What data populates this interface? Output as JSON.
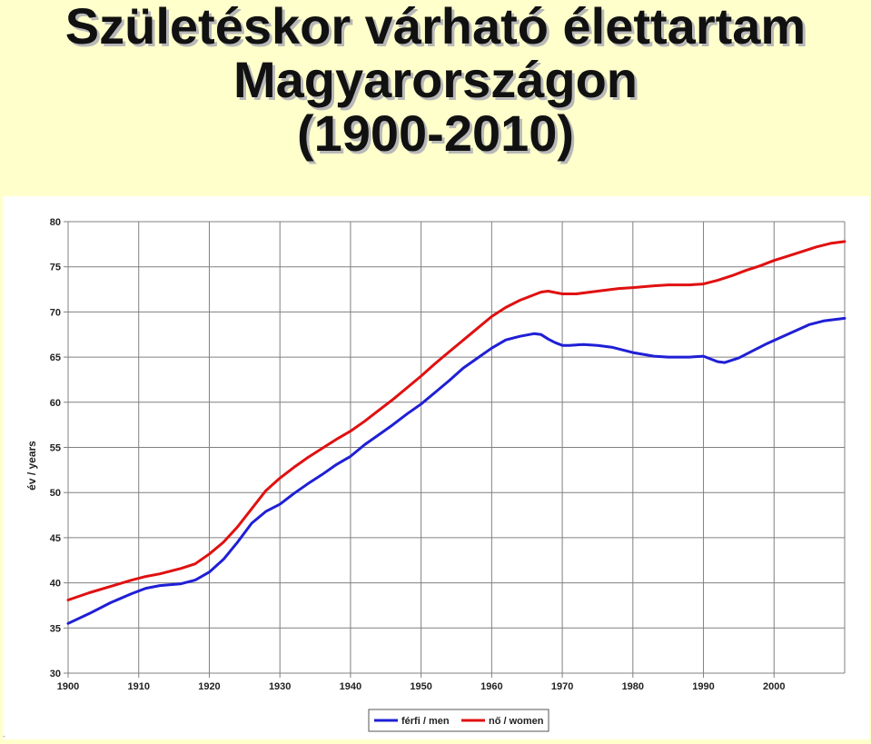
{
  "slide": {
    "title_lines": [
      "Születéskor várható élettartam",
      "Magyarországon",
      "(1900-2010)"
    ],
    "corner_mark": "-"
  },
  "colors": {
    "background": "#ffffcc",
    "men": "#1f1fd6",
    "women": "#e01010",
    "grid": "#808080"
  },
  "chart_data": {
    "type": "line",
    "title": "",
    "xlabel": "",
    "ylabel": "év / years",
    "xlim": [
      1900,
      2010
    ],
    "ylim": [
      30,
      80
    ],
    "x_ticks": [
      1900,
      1910,
      1920,
      1930,
      1940,
      1950,
      1960,
      1970,
      1980,
      1990,
      2000
    ],
    "y_ticks": [
      30,
      35,
      40,
      45,
      50,
      55,
      60,
      65,
      70,
      75,
      80
    ],
    "grid": true,
    "legend_position": "bottom-center",
    "series": [
      {
        "name": "férfi / men",
        "color": "#1f1fd6",
        "x": [
          1900,
          1903,
          1906,
          1909,
          1911,
          1913,
          1916,
          1918,
          1920,
          1922,
          1924,
          1926,
          1928,
          1930,
          1932,
          1934,
          1936,
          1938,
          1940,
          1942,
          1944,
          1946,
          1948,
          1950,
          1952,
          1954,
          1956,
          1958,
          1960,
          1962,
          1964,
          1966,
          1967,
          1968,
          1969,
          1970,
          1971,
          1973,
          1975,
          1977,
          1980,
          1983,
          1985,
          1988,
          1990,
          1992,
          1993,
          1995,
          1997,
          1999,
          2001,
          2003,
          2005,
          2007,
          2010
        ],
        "y": [
          35.5,
          36.6,
          37.8,
          38.8,
          39.4,
          39.7,
          39.9,
          40.3,
          41.2,
          42.6,
          44.5,
          46.6,
          47.9,
          48.7,
          49.9,
          51.0,
          52.0,
          53.1,
          54.0,
          55.3,
          56.4,
          57.5,
          58.7,
          59.8,
          61.1,
          62.4,
          63.8,
          64.9,
          66.0,
          66.9,
          67.3,
          67.6,
          67.5,
          67.0,
          66.6,
          66.3,
          66.3,
          66.4,
          66.3,
          66.1,
          65.5,
          65.1,
          65.0,
          65.0,
          65.1,
          64.5,
          64.4,
          64.9,
          65.7,
          66.5,
          67.2,
          67.9,
          68.6,
          69.0,
          69.3
        ]
      },
      {
        "name": "nő / women",
        "color": "#e01010",
        "x": [
          1900,
          1903,
          1906,
          1909,
          1911,
          1913,
          1916,
          1918,
          1920,
          1922,
          1924,
          1926,
          1928,
          1930,
          1932,
          1934,
          1936,
          1938,
          1940,
          1942,
          1944,
          1946,
          1948,
          1950,
          1952,
          1954,
          1956,
          1958,
          1960,
          1962,
          1964,
          1966,
          1967,
          1968,
          1970,
          1972,
          1975,
          1978,
          1980,
          1983,
          1985,
          1988,
          1990,
          1992,
          1994,
          1996,
          1998,
          2000,
          2002,
          2004,
          2006,
          2008,
          2010
        ],
        "y": [
          38.1,
          38.9,
          39.6,
          40.3,
          40.7,
          41.0,
          41.6,
          42.1,
          43.2,
          44.5,
          46.2,
          48.2,
          50.2,
          51.6,
          52.8,
          53.9,
          54.9,
          55.9,
          56.8,
          57.9,
          59.1,
          60.3,
          61.6,
          62.9,
          64.3,
          65.6,
          66.9,
          68.2,
          69.5,
          70.5,
          71.3,
          71.9,
          72.2,
          72.3,
          72.0,
          72.0,
          72.3,
          72.6,
          72.7,
          72.9,
          73.0,
          73.0,
          73.1,
          73.5,
          74.0,
          74.6,
          75.1,
          75.7,
          76.2,
          76.7,
          77.2,
          77.6,
          77.8
        ]
      }
    ]
  }
}
